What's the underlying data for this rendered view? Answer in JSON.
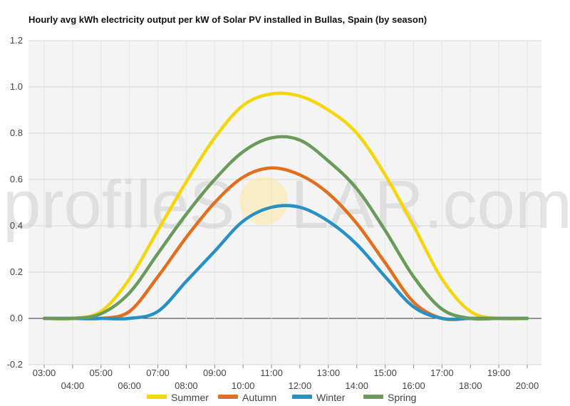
{
  "chart_data": {
    "type": "line",
    "title": "Hourly avg kWh electricity output per kW of Solar PV installed in Bullas, Spain (by season)",
    "xlabel": "",
    "ylabel": "",
    "x_ticks": [
      "03:00",
      "04:00",
      "05:00",
      "06:00",
      "07:00",
      "08:00",
      "09:00",
      "10:00",
      "11:00",
      "12:00",
      "13:00",
      "14:00",
      "15:00",
      "16:00",
      "17:00",
      "18:00",
      "19:00",
      "20:00"
    ],
    "y_ticks": [
      "-0.2",
      "0.0",
      "0.2",
      "0.4",
      "0.6",
      "0.8",
      "1.0",
      "1.2"
    ],
    "ylim": [
      -0.2,
      1.2
    ],
    "grid": true,
    "legend_position": "bottom",
    "series": [
      {
        "name": "Summer",
        "color": "#f5d60b",
        "values": [
          0.0,
          0.0,
          0.03,
          0.17,
          0.38,
          0.59,
          0.78,
          0.92,
          0.97,
          0.96,
          0.9,
          0.8,
          0.62,
          0.4,
          0.17,
          0.03,
          0.0,
          0.0
        ]
      },
      {
        "name": "Autumn",
        "color": "#e26f1e",
        "values": [
          0.0,
          0.0,
          0.0,
          0.03,
          0.18,
          0.35,
          0.5,
          0.61,
          0.65,
          0.62,
          0.54,
          0.41,
          0.24,
          0.07,
          0.0,
          0.0,
          0.0,
          0.0
        ]
      },
      {
        "name": "Winter",
        "color": "#2791c3",
        "values": [
          0.0,
          0.0,
          0.0,
          0.0,
          0.03,
          0.16,
          0.29,
          0.42,
          0.48,
          0.48,
          0.42,
          0.32,
          0.18,
          0.05,
          0.0,
          0.0,
          0.0,
          0.0
        ]
      },
      {
        "name": "Spring",
        "color": "#6a9b5b",
        "values": [
          0.0,
          0.0,
          0.02,
          0.11,
          0.28,
          0.45,
          0.6,
          0.72,
          0.78,
          0.77,
          0.68,
          0.56,
          0.38,
          0.18,
          0.04,
          0.0,
          0.0,
          0.0
        ]
      }
    ]
  },
  "watermark": {
    "text_left": "profileS",
    "text_right": "LAR.com",
    "sun_color": "#fbe9a8"
  }
}
